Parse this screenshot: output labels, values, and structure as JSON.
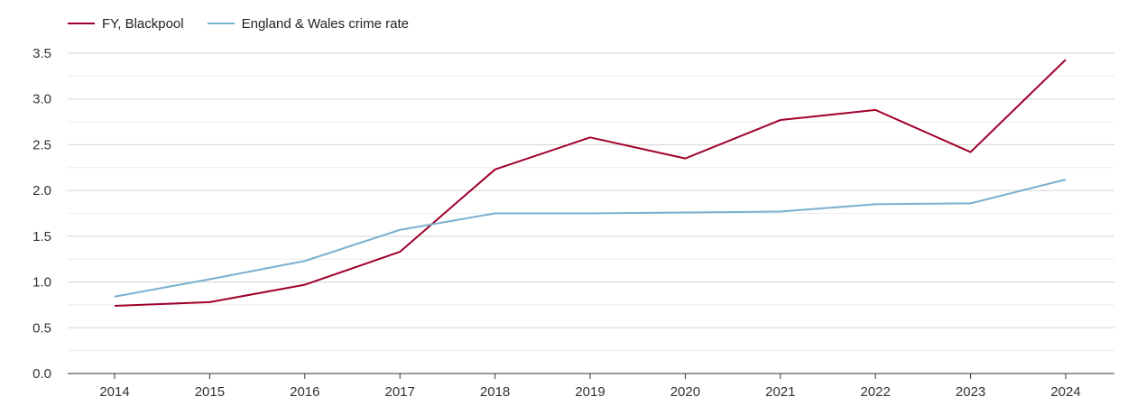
{
  "chart_data": {
    "type": "line",
    "title": "",
    "xlabel": "",
    "ylabel": "",
    "categories": [
      "2014",
      "2015",
      "2016",
      "2017",
      "2018",
      "2019",
      "2020",
      "2021",
      "2022",
      "2023",
      "2024"
    ],
    "ylim": [
      0,
      3.5
    ],
    "yticks": [
      "0.0",
      "0.5",
      "1.0",
      "1.5",
      "2.0",
      "2.5",
      "3.0",
      "3.5"
    ],
    "grid": true,
    "legend_position": "top-left",
    "series": [
      {
        "name": "FY, Blackpool",
        "color": "#a0002a",
        "values": [
          0.74,
          0.78,
          0.97,
          1.33,
          2.23,
          2.58,
          2.35,
          2.77,
          2.88,
          2.42,
          3.43
        ]
      },
      {
        "name": "England & Wales crime rate",
        "color": "#79afd1",
        "values": [
          0.84,
          1.03,
          1.23,
          1.57,
          1.75,
          1.75,
          1.76,
          1.77,
          1.85,
          1.86,
          2.12
        ]
      }
    ]
  }
}
